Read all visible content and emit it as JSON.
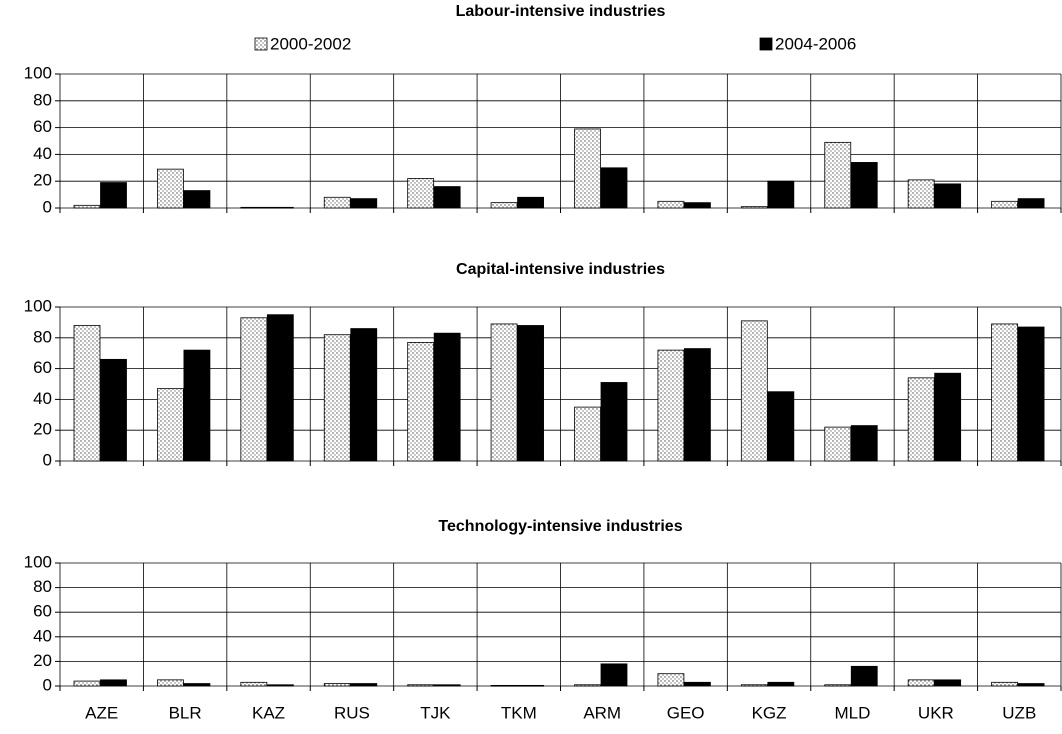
{
  "chart_data": [
    {
      "type": "bar",
      "title": "Labour-intensive industries",
      "legend": "top",
      "ylim": [
        0,
        100
      ],
      "yticks": [
        0,
        20,
        40,
        60,
        80,
        100
      ],
      "grid": true,
      "series": [
        {
          "name": "2000-2002",
          "color": "#ffffff",
          "pattern": "dots",
          "values": [
            2,
            29,
            0.5,
            8,
            22,
            4,
            59,
            5,
            1,
            49,
            21,
            5
          ]
        },
        {
          "name": "2004-2006",
          "color": "#000000",
          "values": [
            19,
            13,
            0.5,
            7,
            16,
            8,
            30,
            4,
            20,
            34,
            18,
            7
          ]
        }
      ]
    },
    {
      "type": "bar",
      "title": "Capital-intensive industries",
      "ylim": [
        0,
        100
      ],
      "yticks": [
        0,
        20,
        40,
        60,
        80,
        100
      ],
      "grid": true,
      "series": [
        {
          "color": "#ffffff",
          "pattern": "dots",
          "values": [
            88,
            47,
            93,
            82,
            77,
            89,
            35,
            72,
            91,
            22,
            54,
            89
          ]
        },
        {
          "color": "#000000",
          "values": [
            66,
            72,
            95,
            86,
            83,
            88,
            51,
            73,
            45,
            23,
            57,
            87
          ]
        }
      ]
    },
    {
      "type": "bar",
      "title": "Technology-intensive industries",
      "ylim": [
        0,
        100
      ],
      "yticks": [
        0,
        20,
        40,
        60,
        80,
        100
      ],
      "grid": true,
      "categories": [
        "AZE",
        "BLR",
        "KAZ",
        "RUS",
        "TJK",
        "TKM",
        "ARM",
        "GEO",
        "KGZ",
        "MLD",
        "UKR",
        "UZB"
      ],
      "series": [
        {
          "color": "#ffffff",
          "pattern": "dots",
          "values": [
            4,
            5,
            3,
            2,
            1,
            0.5,
            1,
            10,
            1,
            1,
            5,
            3
          ]
        },
        {
          "color": "#000000",
          "values": [
            5,
            2,
            1,
            2,
            1,
            0.5,
            18,
            3,
            3,
            16,
            5,
            2
          ]
        }
      ]
    }
  ]
}
